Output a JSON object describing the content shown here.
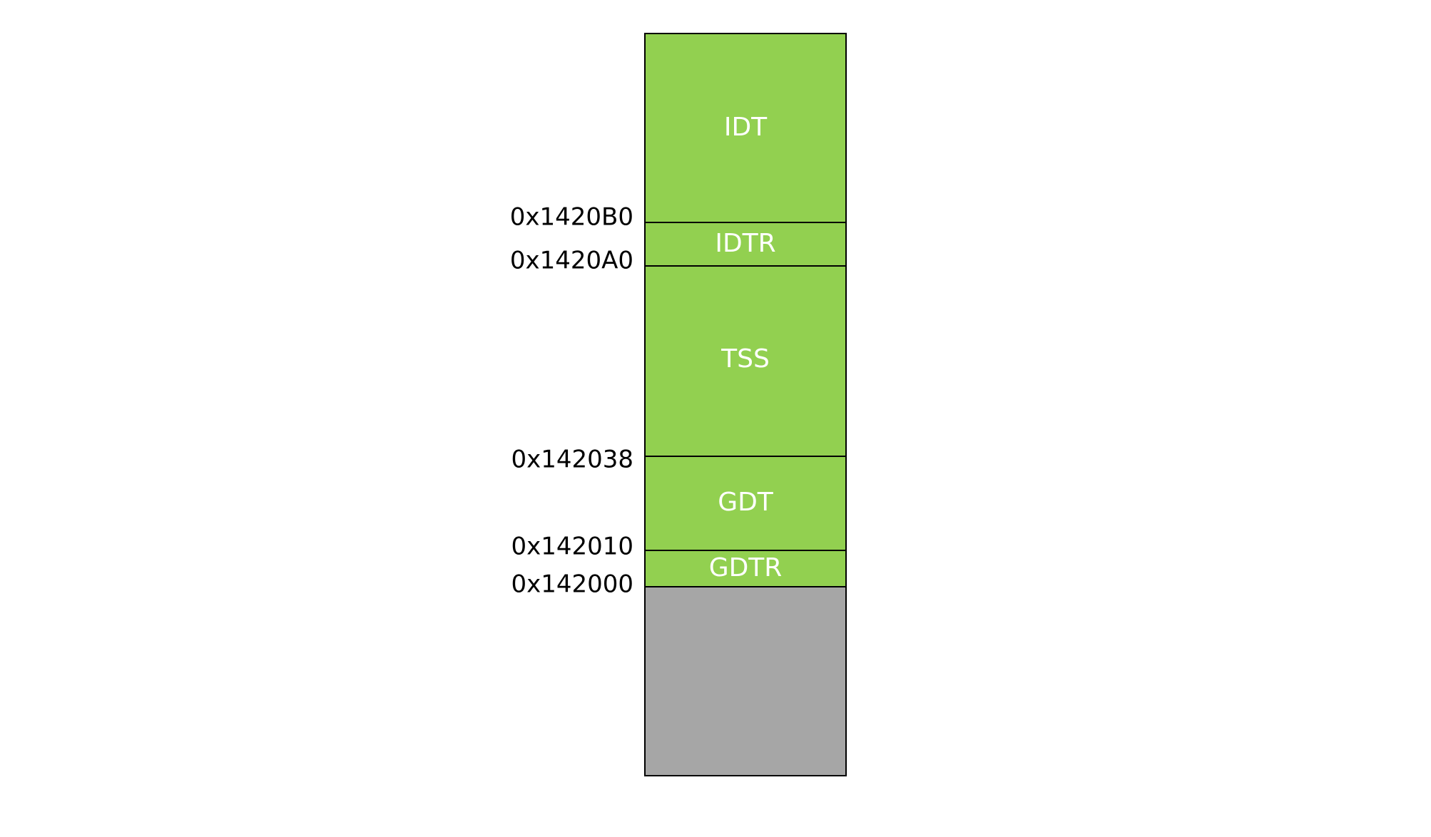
{
  "diagram": {
    "regions": [
      {
        "name": "idt",
        "label": "IDT",
        "color": "#92d050"
      },
      {
        "name": "idtr",
        "label": "IDTR",
        "color": "#92d050"
      },
      {
        "name": "tss",
        "label": "TSS",
        "color": "#92d050"
      },
      {
        "name": "gdt",
        "label": "GDT",
        "color": "#92d050"
      },
      {
        "name": "gdtr",
        "label": "GDTR",
        "color": "#92d050"
      },
      {
        "name": "free",
        "label": "",
        "color": "#a6a6a6"
      }
    ],
    "addresses": [
      "0x1420B0",
      "0x1420A0",
      "0x142038",
      "0x142010",
      "0x142000"
    ],
    "border_color": "#000000"
  }
}
